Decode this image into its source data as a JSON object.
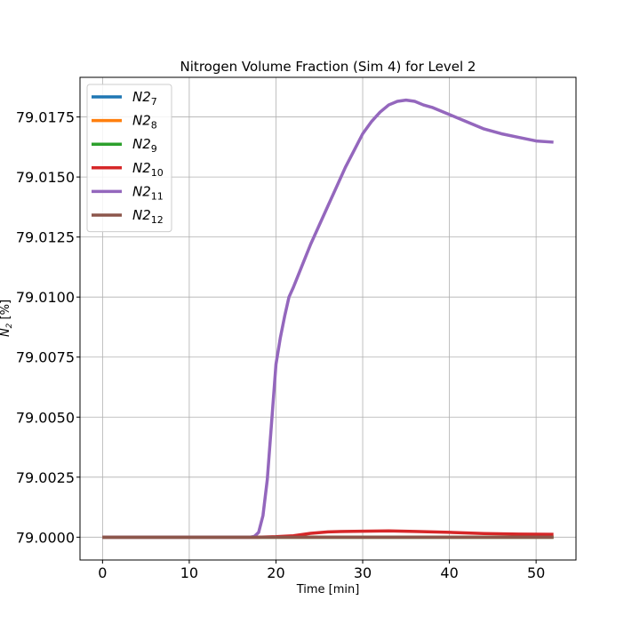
{
  "chart_data": {
    "type": "line",
    "title": "Nitrogen Volume Fraction (Sim 4) for Level 2",
    "xlabel": "Time [min]",
    "ylabel": "N",
    "ylabel_sub": "2",
    "ylabel_suffix": " [%]",
    "xlim": [
      -2.6,
      54.6
    ],
    "ylim": [
      78.99905,
      79.01915
    ],
    "xticks": [
      0,
      10,
      20,
      30,
      40,
      50
    ],
    "xtick_labels": [
      "0",
      "10",
      "20",
      "30",
      "40",
      "50"
    ],
    "yticks": [
      79.0,
      79.0025,
      79.005,
      79.0075,
      79.01,
      79.0125,
      79.015,
      79.0175
    ],
    "ytick_labels": [
      "79.0000",
      "79.0025",
      "79.0050",
      "79.0075",
      "79.0100",
      "79.0125",
      "79.0150",
      "79.0175"
    ],
    "grid": true,
    "legend_position": "top-left",
    "series": [
      {
        "name": "N2",
        "sub": "7",
        "color": "#1f77b4",
        "points": [
          [
            0,
            79.0
          ],
          [
            52,
            79.0
          ]
        ]
      },
      {
        "name": "N2",
        "sub": "8",
        "color": "#ff7f0e",
        "points": [
          [
            0,
            79.0
          ],
          [
            52,
            79.0
          ]
        ]
      },
      {
        "name": "N2",
        "sub": "9",
        "color": "#2ca02c",
        "points": [
          [
            0,
            79.0
          ],
          [
            52,
            79.0
          ]
        ]
      },
      {
        "name": "N2",
        "sub": "10",
        "color": "#d62728",
        "points": [
          [
            0,
            79.0
          ],
          [
            18,
            79.0
          ],
          [
            20,
            79.00002
          ],
          [
            22,
            79.00006
          ],
          [
            24,
            79.00016
          ],
          [
            26,
            79.00022
          ],
          [
            28,
            79.00024
          ],
          [
            30,
            79.00025
          ],
          [
            33,
            79.00026
          ],
          [
            36,
            79.00024
          ],
          [
            40,
            79.0002
          ],
          [
            44,
            79.00015
          ],
          [
            48,
            79.00013
          ],
          [
            52,
            79.00012
          ]
        ]
      },
      {
        "name": "N2",
        "sub": "11",
        "color": "#9467bd",
        "points": [
          [
            0,
            79.0
          ],
          [
            17,
            79.0
          ],
          [
            17.5,
            79.00003
          ],
          [
            18,
            79.0002
          ],
          [
            18.5,
            79.0009
          ],
          [
            19,
            79.0024
          ],
          [
            19.5,
            79.0048
          ],
          [
            20,
            79.0072
          ],
          [
            20.5,
            79.0083
          ],
          [
            21,
            79.0092
          ],
          [
            21.5,
            79.01
          ],
          [
            22,
            79.0104
          ],
          [
            23,
            79.0113
          ],
          [
            24,
            79.0122
          ],
          [
            25,
            79.013
          ],
          [
            26,
            79.0138
          ],
          [
            27,
            79.0146
          ],
          [
            28,
            79.0154
          ],
          [
            29,
            79.0161
          ],
          [
            30,
            79.0168
          ],
          [
            31,
            79.0173
          ],
          [
            32,
            79.0177
          ],
          [
            33,
            79.018
          ],
          [
            34,
            79.01815
          ],
          [
            35,
            79.0182
          ],
          [
            36,
            79.01815
          ],
          [
            37,
            79.018
          ],
          [
            38,
            79.0179
          ],
          [
            40,
            79.0176
          ],
          [
            42,
            79.0173
          ],
          [
            44,
            79.017
          ],
          [
            46,
            79.0168
          ],
          [
            48,
            79.01665
          ],
          [
            50,
            79.0165
          ],
          [
            52,
            79.01645
          ]
        ]
      },
      {
        "name": "N2",
        "sub": "12",
        "color": "#8c564b",
        "points": [
          [
            0,
            79.0
          ],
          [
            52,
            79.0
          ]
        ]
      }
    ]
  }
}
